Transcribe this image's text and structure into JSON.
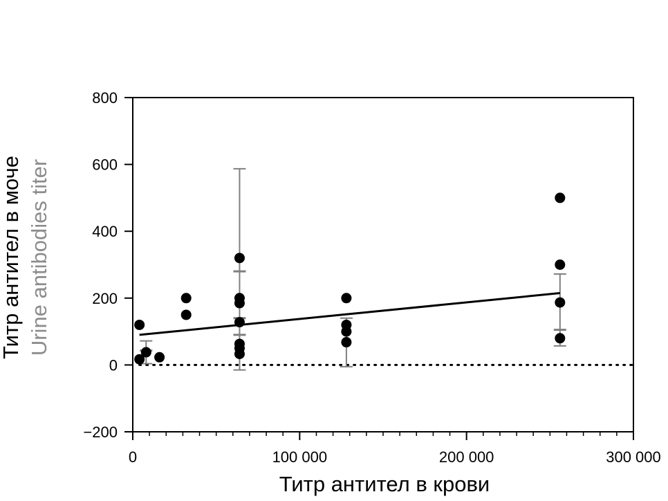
{
  "chart_data": {
    "type": "scatter",
    "title": "",
    "xlabel": "Титр антител в крови",
    "ylabel": "Титр антител в моче",
    "ylabel_secondary": "Urine antibodies titer",
    "xlim": [
      0,
      300000
    ],
    "ylim": [
      -200,
      800
    ],
    "x_ticks": [
      {
        "value": 0,
        "label": "0"
      },
      {
        "value": 100000,
        "label": "100 000"
      },
      {
        "value": 200000,
        "label": "200 000"
      },
      {
        "value": 300000,
        "label": "300 000"
      }
    ],
    "x_minor_step": 10000,
    "y_ticks": [
      {
        "value": -200,
        "label": "−200"
      },
      {
        "value": 0,
        "label": "0"
      },
      {
        "value": 200,
        "label": "200"
      },
      {
        "value": 400,
        "label": "400"
      },
      {
        "value": 600,
        "label": "600"
      },
      {
        "value": 800,
        "label": "800"
      }
    ],
    "grid": false,
    "points": [
      {
        "x": 4000,
        "y": 120
      },
      {
        "x": 4000,
        "y": 17
      },
      {
        "x": 8000,
        "y": 38
      },
      {
        "x": 16000,
        "y": 23
      },
      {
        "x": 32000,
        "y": 200
      },
      {
        "x": 32000,
        "y": 150
      },
      {
        "x": 64000,
        "y": 320
      },
      {
        "x": 64000,
        "y": 200
      },
      {
        "x": 64000,
        "y": 185
      },
      {
        "x": 64000,
        "y": 128
      },
      {
        "x": 64000,
        "y": 63
      },
      {
        "x": 64000,
        "y": 50
      },
      {
        "x": 64000,
        "y": 33
      },
      {
        "x": 128000,
        "y": 200
      },
      {
        "x": 128000,
        "y": 120
      },
      {
        "x": 128000,
        "y": 100
      },
      {
        "x": 128000,
        "y": 68
      },
      {
        "x": 256000,
        "y": 500
      },
      {
        "x": 256000,
        "y": 300
      },
      {
        "x": 256000,
        "y": 187
      },
      {
        "x": 256000,
        "y": 80
      }
    ],
    "error_bars": [
      {
        "x": 8000,
        "low": 4,
        "high": 72,
        "inner": [
          43
        ]
      },
      {
        "x": 64000,
        "low": -15,
        "high": 587,
        "inner": [
          280,
          140,
          90
        ]
      },
      {
        "x": 128000,
        "low": -5,
        "high": 140,
        "inner": []
      },
      {
        "x": 256000,
        "low": 57,
        "high": 272,
        "inner": [
          105
        ]
      }
    ],
    "regression_line": {
      "x": [
        4000,
        256000
      ],
      "y": [
        90,
        215
      ]
    },
    "reference_line": {
      "y": 0,
      "x_start": 4000,
      "x_end": 300000,
      "style": "dotted"
    },
    "colors": {
      "points": "#000000",
      "error_bars": "#7f7f7f",
      "line": "#000000",
      "secondary_label": "#8c8c8c"
    }
  }
}
